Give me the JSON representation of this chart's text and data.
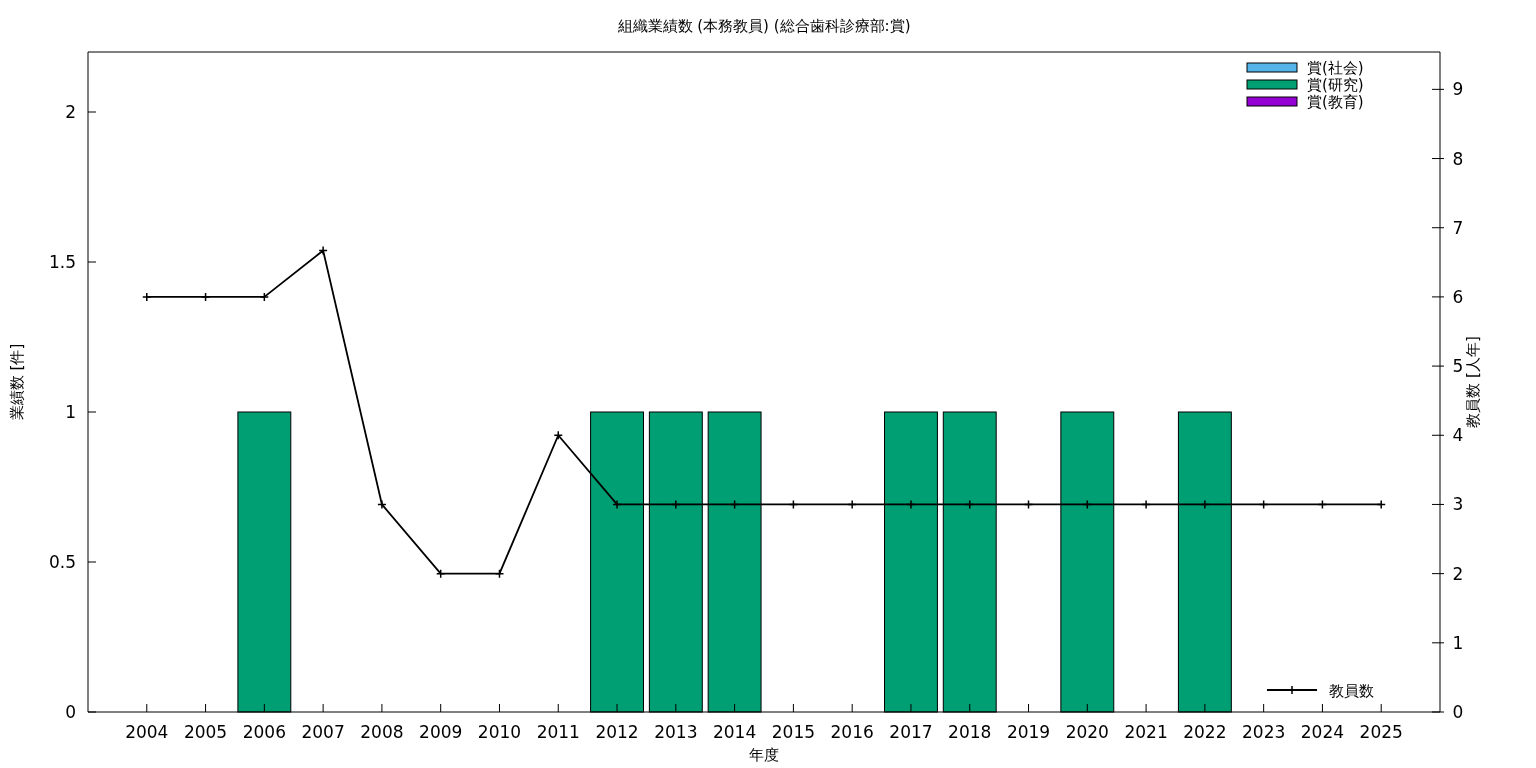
{
  "chart_data": {
    "type": "bar",
    "title": "組織業績数 (本務教員) (総合歯科診療部:賞)",
    "xlabel": "年度",
    "ylabel": "業績数 [件]",
    "y2label": "教員数 [人年]",
    "categories": [
      "2004",
      "2005",
      "2006",
      "2007",
      "2008",
      "2009",
      "2010",
      "2011",
      "2012",
      "2013",
      "2014",
      "2015",
      "2016",
      "2017",
      "2018",
      "2019",
      "2020",
      "2021",
      "2022",
      "2023",
      "2024",
      "2025"
    ],
    "stacked": true,
    "legend": "top right",
    "marker": "cross",
    "ylim": [
      0,
      2.2
    ],
    "yticks": [
      0,
      0.5,
      1,
      1.5,
      2
    ],
    "y2lim": [
      0,
      9.54
    ],
    "y2ticks": [
      0,
      1,
      2,
      3,
      4,
      5,
      6,
      7,
      8,
      9
    ],
    "series": [
      {
        "name": "賞(社会)",
        "color": "#56b4e9",
        "values": [
          0,
          0,
          0,
          0,
          0,
          0,
          0,
          0,
          0,
          0,
          0,
          0,
          0,
          0,
          0,
          0,
          0,
          0,
          0,
          0,
          0,
          0
        ]
      },
      {
        "name": "賞(研究)",
        "color": "#009e73",
        "values": [
          0,
          0,
          1,
          0,
          0,
          0,
          0,
          0,
          1,
          1,
          1,
          0,
          0,
          1,
          1,
          0,
          1,
          0,
          1,
          0,
          0,
          0
        ]
      },
      {
        "name": "賞(教育)",
        "color": "#9400d3",
        "values": [
          0,
          0,
          0,
          0,
          0,
          0,
          0,
          0,
          0,
          0,
          0,
          0,
          0,
          0,
          0,
          0,
          0,
          0,
          0,
          0,
          0,
          0
        ]
      },
      {
        "name": "教員数",
        "type": "line",
        "axis": "y2",
        "color": "#000000",
        "values": [
          6,
          6,
          6,
          6.67,
          3,
          2,
          2,
          4,
          3,
          3,
          3,
          3,
          3,
          3,
          3,
          3,
          3,
          3,
          3,
          3,
          3,
          3
        ]
      }
    ]
  }
}
